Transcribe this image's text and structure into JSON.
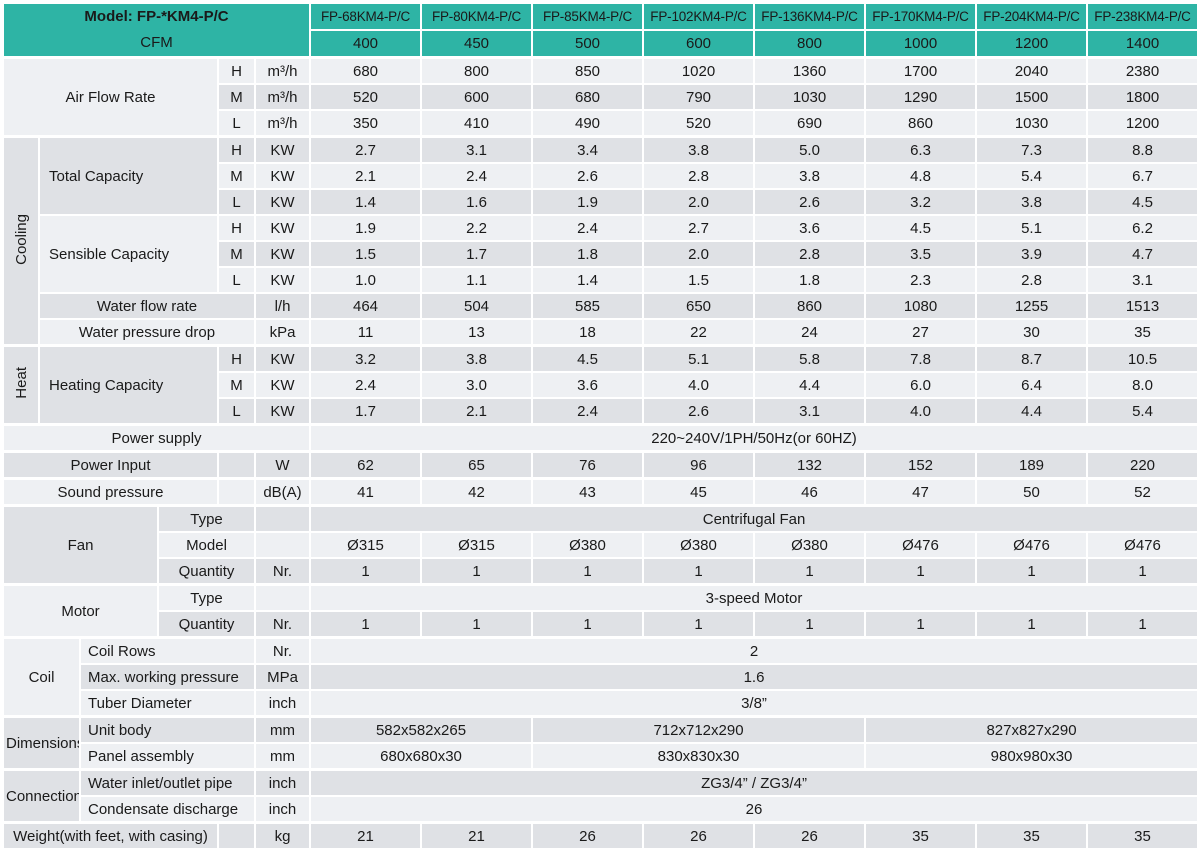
{
  "colors": {
    "accent_teal": "#2eb4a5",
    "stripe_light": "#eef0f3",
    "stripe_dark": "#dfe1e5",
    "label_flat": "#e8eaed",
    "grid_border": "#ffffff",
    "text": "#1a1a1a"
  },
  "header": {
    "model_label": "Model: FP-*KM4-P/C",
    "cfm_label": "CFM",
    "models": [
      "FP-68KM4-P/C",
      "FP-80KM4-P/C",
      "FP-85KM4-P/C",
      "FP-102KM4-P/C",
      "FP-136KM4-P/C",
      "FP-170KM4-P/C",
      "FP-204KM4-P/C",
      "FP-238KM4-P/C"
    ],
    "cfm_values": [
      "400",
      "450",
      "500",
      "600",
      "800",
      "1000",
      "1200",
      "1400"
    ]
  },
  "rows": [
    {
      "name": "air-flow-rate-h",
      "sect": true,
      "cells": [
        {
          "k": "l",
          "t": "Air Flow Rate",
          "cs": 4,
          "rs": 3
        },
        {
          "k": "sp",
          "t": "H"
        },
        {
          "k": "u",
          "t": "m³/h"
        }
      ],
      "values": [
        "680",
        "800",
        "850",
        "1020",
        "1360",
        "1700",
        "2040",
        "2380"
      ]
    },
    {
      "name": "air-flow-rate-m",
      "cells": [
        {
          "k": "sp",
          "t": "M"
        },
        {
          "k": "u",
          "t": "m³/h"
        }
      ],
      "values": [
        "520",
        "600",
        "680",
        "790",
        "1030",
        "1290",
        "1500",
        "1800"
      ]
    },
    {
      "name": "air-flow-rate-l",
      "cells": [
        {
          "k": "sp",
          "t": "L"
        },
        {
          "k": "u",
          "t": "m³/h"
        }
      ],
      "values": [
        "350",
        "410",
        "490",
        "520",
        "690",
        "860",
        "1030",
        "1200"
      ]
    },
    {
      "name": "cooling-total-capacity-h",
      "sect": true,
      "cells": [
        {
          "k": "g",
          "t": "Cooling",
          "rs": 8,
          "rot": true
        },
        {
          "k": "l",
          "t": "Total Capacity",
          "cs": 3,
          "rs": 3,
          "left": true
        },
        {
          "k": "sp",
          "t": "H"
        },
        {
          "k": "u",
          "t": "KW"
        }
      ],
      "values": [
        "2.7",
        "3.1",
        "3.4",
        "3.8",
        "5.0",
        "6.3",
        "7.3",
        "8.8"
      ]
    },
    {
      "name": "cooling-total-capacity-m",
      "cells": [
        {
          "k": "sp",
          "t": "M"
        },
        {
          "k": "u",
          "t": "KW"
        }
      ],
      "values": [
        "2.1",
        "2.4",
        "2.6",
        "2.8",
        "3.8",
        "4.8",
        "5.4",
        "6.7"
      ]
    },
    {
      "name": "cooling-total-capacity-l",
      "cells": [
        {
          "k": "sp",
          "t": "L"
        },
        {
          "k": "u",
          "t": "KW"
        }
      ],
      "values": [
        "1.4",
        "1.6",
        "1.9",
        "2.0",
        "2.6",
        "3.2",
        "3.8",
        "4.5"
      ]
    },
    {
      "name": "cooling-sensible-capacity-h",
      "cells": [
        {
          "k": "l",
          "t": "Sensible Capacity",
          "cs": 3,
          "rs": 3,
          "left": true
        },
        {
          "k": "sp",
          "t": "H"
        },
        {
          "k": "u",
          "t": "KW"
        }
      ],
      "values": [
        "1.9",
        "2.2",
        "2.4",
        "2.7",
        "3.6",
        "4.5",
        "5.1",
        "6.2"
      ]
    },
    {
      "name": "cooling-sensible-capacity-m",
      "cells": [
        {
          "k": "sp",
          "t": "M"
        },
        {
          "k": "u",
          "t": "KW"
        }
      ],
      "values": [
        "1.5",
        "1.7",
        "1.8",
        "2.0",
        "2.8",
        "3.5",
        "3.9",
        "4.7"
      ]
    },
    {
      "name": "cooling-sensible-capacity-l",
      "cells": [
        {
          "k": "sp",
          "t": "L"
        },
        {
          "k": "u",
          "t": "KW"
        }
      ],
      "values": [
        "1.0",
        "1.1",
        "1.4",
        "1.5",
        "1.8",
        "2.3",
        "2.8",
        "3.1"
      ]
    },
    {
      "name": "water-flow-rate",
      "cells": [
        {
          "k": "l",
          "t": "Water flow rate",
          "cs": 4
        },
        {
          "k": "u",
          "t": "l/h"
        }
      ],
      "values": [
        "464",
        "504",
        "585",
        "650",
        "860",
        "1080",
        "1255",
        "1513"
      ]
    },
    {
      "name": "water-pressure-drop",
      "cells": [
        {
          "k": "l",
          "t": "Water pressure drop",
          "cs": 4
        },
        {
          "k": "u",
          "t": "kPa"
        }
      ],
      "values": [
        "11",
        "13",
        "18",
        "22",
        "24",
        "27",
        "30",
        "35"
      ]
    },
    {
      "name": "heating-capacity-h",
      "sect": true,
      "cells": [
        {
          "k": "g",
          "t": "Heat",
          "rs": 3,
          "rot": true
        },
        {
          "k": "l",
          "t": "Heating Capacity",
          "cs": 3,
          "rs": 3,
          "left": true
        },
        {
          "k": "sp",
          "t": "H"
        },
        {
          "k": "u",
          "t": "KW"
        }
      ],
      "values": [
        "3.2",
        "3.8",
        "4.5",
        "5.1",
        "5.8",
        "7.8",
        "8.7",
        "10.5"
      ]
    },
    {
      "name": "heating-capacity-m",
      "cells": [
        {
          "k": "sp",
          "t": "M"
        },
        {
          "k": "u",
          "t": "KW"
        }
      ],
      "values": [
        "2.4",
        "3.0",
        "3.6",
        "4.0",
        "4.4",
        "6.0",
        "6.4",
        "8.0"
      ]
    },
    {
      "name": "heating-capacity-l",
      "cells": [
        {
          "k": "sp",
          "t": "L"
        },
        {
          "k": "u",
          "t": "KW"
        }
      ],
      "values": [
        "1.7",
        "2.1",
        "2.4",
        "2.6",
        "3.1",
        "4.0",
        "4.4",
        "5.4"
      ]
    },
    {
      "name": "power-supply",
      "sect": true,
      "cells": [
        {
          "k": "l",
          "t": "Power supply",
          "cs": 6
        },
        {
          "k": "m",
          "t": "220~240V/1PH/50Hz(or 60HZ)",
          "cs": 8
        }
      ]
    },
    {
      "name": "power-input",
      "sect": true,
      "cells": [
        {
          "k": "l",
          "t": "Power Input",
          "cs": 4
        },
        {
          "k": "sp",
          "t": ""
        },
        {
          "k": "u",
          "t": "W"
        }
      ],
      "values": [
        "62",
        "65",
        "76",
        "96",
        "132",
        "152",
        "189",
        "220"
      ]
    },
    {
      "name": "sound-pressure",
      "sect": true,
      "cells": [
        {
          "k": "l",
          "t": "Sound pressure",
          "cs": 4
        },
        {
          "k": "sp",
          "t": ""
        },
        {
          "k": "u",
          "t": "dB(A)"
        }
      ],
      "values": [
        "41",
        "42",
        "43",
        "45",
        "46",
        "47",
        "50",
        "52"
      ]
    },
    {
      "name": "fan-type",
      "sect": true,
      "cells": [
        {
          "k": "g",
          "t": "Fan",
          "cs": 3,
          "rs": 3
        },
        {
          "k": "sc",
          "t": "Type",
          "cs": 2
        },
        {
          "k": "u",
          "t": ""
        },
        {
          "k": "m",
          "t": "Centrifugal Fan",
          "cs": 8
        }
      ]
    },
    {
      "name": "fan-model",
      "cells": [
        {
          "k": "sc",
          "t": "Model",
          "cs": 2
        },
        {
          "k": "u",
          "t": ""
        }
      ],
      "values": [
        "Ø315",
        "Ø315",
        "Ø380",
        "Ø380",
        "Ø380",
        "Ø476",
        "Ø476",
        "Ø476"
      ]
    },
    {
      "name": "fan-quantity",
      "cells": [
        {
          "k": "sc",
          "t": "Quantity",
          "cs": 2
        },
        {
          "k": "u",
          "t": "Nr."
        }
      ],
      "values": [
        "1",
        "1",
        "1",
        "1",
        "1",
        "1",
        "1",
        "1"
      ]
    },
    {
      "name": "motor-type",
      "sect": true,
      "cells": [
        {
          "k": "g",
          "t": "Motor",
          "cs": 3,
          "rs": 2
        },
        {
          "k": "sc",
          "t": "Type",
          "cs": 2
        },
        {
          "k": "u",
          "t": ""
        },
        {
          "k": "m",
          "t": "3-speed Motor",
          "cs": 8
        }
      ]
    },
    {
      "name": "motor-quantity",
      "cells": [
        {
          "k": "sc",
          "t": "Quantity",
          "cs": 2
        },
        {
          "k": "u",
          "t": "Nr."
        }
      ],
      "values": [
        "1",
        "1",
        "1",
        "1",
        "1",
        "1",
        "1",
        "1"
      ]
    },
    {
      "name": "coil-rows",
      "sect": true,
      "cells": [
        {
          "k": "g",
          "t": "Coil",
          "cs": 2,
          "rs": 3
        },
        {
          "k": "sl",
          "t": "Coil Rows",
          "cs": 3
        },
        {
          "k": "u",
          "t": "Nr."
        },
        {
          "k": "m",
          "t": "2",
          "cs": 8
        }
      ]
    },
    {
      "name": "max-working-pressure",
      "cells": [
        {
          "k": "sl",
          "t": "Max. working pressure",
          "cs": 3
        },
        {
          "k": "u",
          "t": "MPa"
        },
        {
          "k": "m",
          "t": "1.6",
          "cs": 8
        }
      ]
    },
    {
      "name": "tuber-diameter",
      "cells": [
        {
          "k": "sl",
          "t": "Tuber Diameter",
          "cs": 3
        },
        {
          "k": "u",
          "t": "inch"
        },
        {
          "k": "m",
          "t": "3/8”",
          "cs": 8
        }
      ]
    },
    {
      "name": "dimensions-unit-body",
      "sect": true,
      "cells": [
        {
          "k": "g",
          "t": "Dimensions",
          "cs": 2,
          "rs": 2
        },
        {
          "k": "sl",
          "t": "Unit body",
          "cs": 3
        },
        {
          "k": "u",
          "t": "mm"
        },
        {
          "k": "m",
          "t": "582x582x265",
          "cs": 2
        },
        {
          "k": "m",
          "t": "712x712x290",
          "cs": 3
        },
        {
          "k": "m",
          "t": "827x827x290",
          "cs": 3
        }
      ]
    },
    {
      "name": "dimensions-panel-assembly",
      "cells": [
        {
          "k": "sl",
          "t": "Panel assembly",
          "cs": 3
        },
        {
          "k": "u",
          "t": "mm"
        },
        {
          "k": "m",
          "t": "680x680x30",
          "cs": 2
        },
        {
          "k": "m",
          "t": "830x830x30",
          "cs": 3
        },
        {
          "k": "m",
          "t": "980x980x30",
          "cs": 3
        }
      ]
    },
    {
      "name": "connection-water-inlet-outlet-pipe",
      "sect": true,
      "cells": [
        {
          "k": "g",
          "t": "Connection",
          "cs": 2,
          "rs": 2
        },
        {
          "k": "sl",
          "t": "Water inlet/outlet pipe",
          "cs": 3
        },
        {
          "k": "u",
          "t": "inch"
        },
        {
          "k": "m",
          "t": "ZG3/4” / ZG3/4”",
          "cs": 8
        }
      ]
    },
    {
      "name": "connection-condensate-discharge",
      "cells": [
        {
          "k": "sl",
          "t": "Condensate discharge",
          "cs": 3
        },
        {
          "k": "u",
          "t": "inch"
        },
        {
          "k": "m",
          "t": "26",
          "cs": 8
        }
      ]
    },
    {
      "name": "weight",
      "sect": true,
      "cells": [
        {
          "k": "l",
          "t": "Weight(with feet, with casing)",
          "cs": 4
        },
        {
          "k": "sp",
          "t": ""
        },
        {
          "k": "u",
          "t": "kg"
        }
      ],
      "values": [
        "21",
        "21",
        "26",
        "26",
        "26",
        "35",
        "35",
        "35"
      ]
    }
  ]
}
